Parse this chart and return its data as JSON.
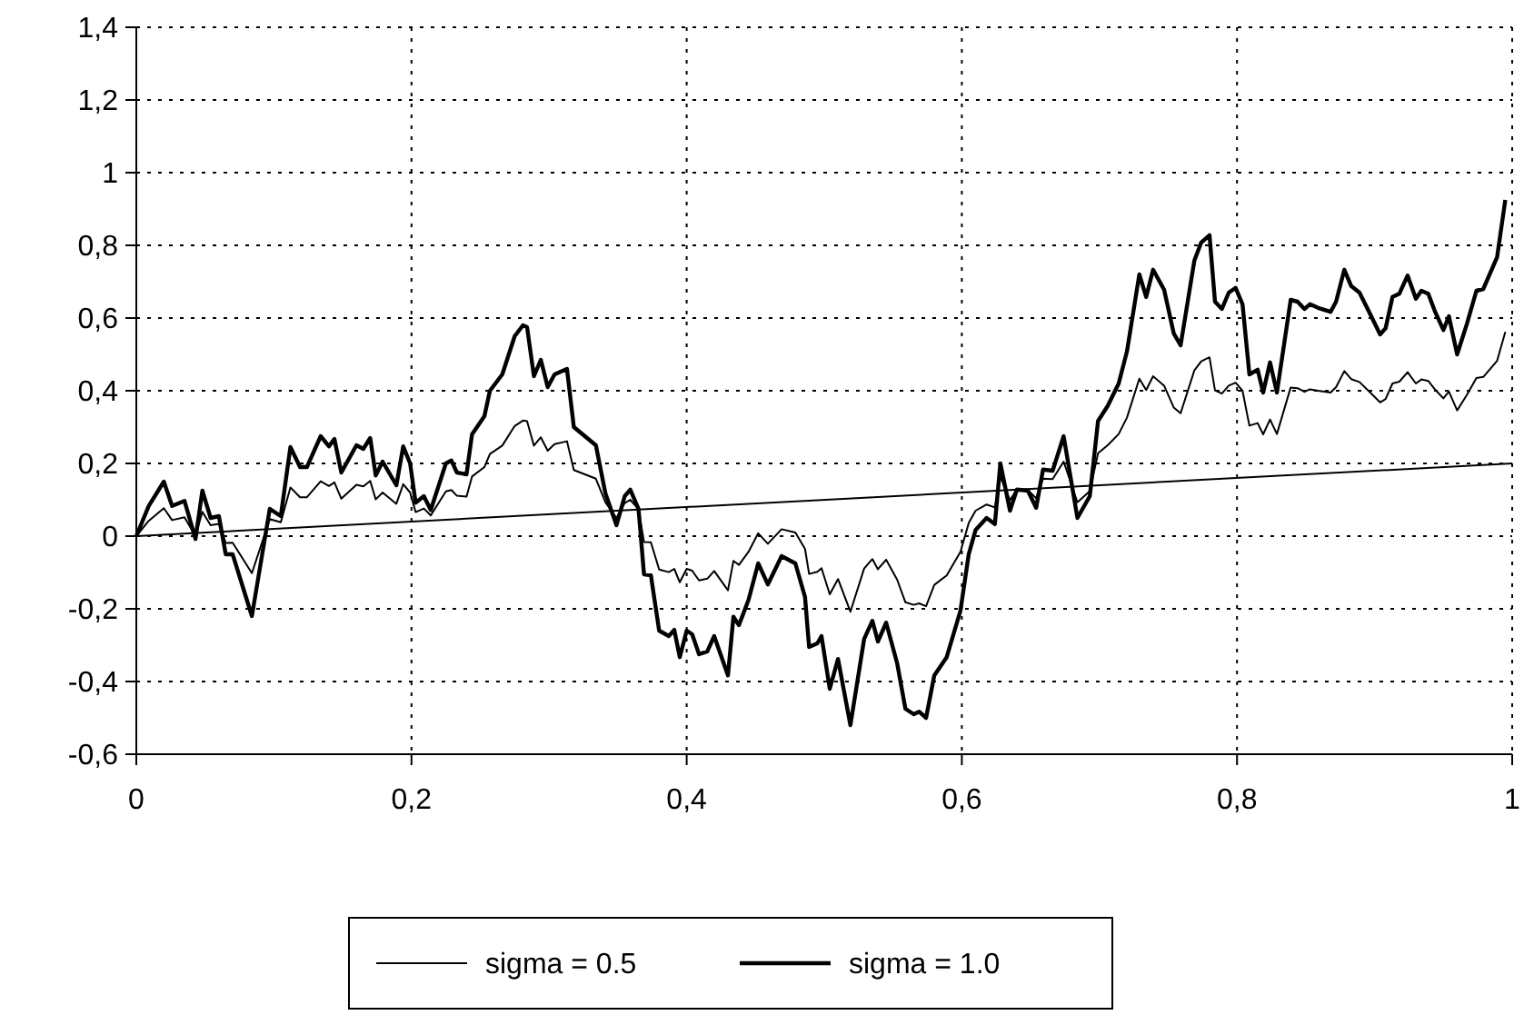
{
  "chart_data": {
    "type": "line",
    "x": [
      0,
      0.009,
      0.02,
      0.026,
      0.035,
      0.043,
      0.048,
      0.054,
      0.06,
      0.065,
      0.07,
      0.084,
      0.097,
      0.105,
      0.112,
      0.119,
      0.124,
      0.134,
      0.14,
      0.144,
      0.149,
      0.16,
      0.165,
      0.17,
      0.174,
      0.179,
      0.189,
      0.194,
      0.199,
      0.203,
      0.209,
      0.214,
      0.225,
      0.229,
      0.233,
      0.24,
      0.244,
      0.253,
      0.257,
      0.266,
      0.275,
      0.281,
      0.284,
      0.289,
      0.294,
      0.299,
      0.304,
      0.313,
      0.318,
      0.334,
      0.341,
      0.349,
      0.355,
      0.359,
      0.365,
      0.369,
      0.374,
      0.38,
      0.387,
      0.391,
      0.395,
      0.4,
      0.404,
      0.409,
      0.415,
      0.42,
      0.43,
      0.434,
      0.438,
      0.445,
      0.452,
      0.459,
      0.469,
      0.479,
      0.486,
      0.489,
      0.495,
      0.498,
      0.504,
      0.51,
      0.519,
      0.529,
      0.535,
      0.539,
      0.545,
      0.553,
      0.559,
      0.565,
      0.569,
      0.574,
      0.58,
      0.589,
      0.599,
      0.605,
      0.61,
      0.618,
      0.624,
      0.628,
      0.635,
      0.64,
      0.648,
      0.654,
      0.659,
      0.666,
      0.674,
      0.684,
      0.693,
      0.699,
      0.706,
      0.714,
      0.72,
      0.729,
      0.734,
      0.739,
      0.747,
      0.754,
      0.759,
      0.769,
      0.774,
      0.78,
      0.784,
      0.789,
      0.794,
      0.799,
      0.804,
      0.809,
      0.815,
      0.819,
      0.824,
      0.829,
      0.839,
      0.844,
      0.849,
      0.853,
      0.859,
      0.868,
      0.872,
      0.878,
      0.883,
      0.889,
      0.896,
      0.904,
      0.908,
      0.913,
      0.918,
      0.924,
      0.93,
      0.934,
      0.939,
      0.944,
      0.95,
      0.954,
      0.96,
      0.967,
      0.974,
      0.979,
      0.989,
      0.995
    ],
    "series": [
      {
        "name": "sigma = 0.5",
        "color": "#000000",
        "values": [
          0,
          0.042,
          0.077,
          0.044,
          0.052,
          0,
          0.067,
          0.03,
          0.034,
          -0.019,
          -0.018,
          -0.102,
          0.047,
          0.038,
          0.134,
          0.107,
          0.107,
          0.151,
          0.138,
          0.148,
          0.103,
          0.141,
          0.137,
          0.152,
          0.101,
          0.12,
          0.089,
          0.143,
          0.12,
          0.066,
          0.076,
          0.057,
          0.123,
          0.127,
          0.111,
          0.109,
          0.164,
          0.19,
          0.226,
          0.249,
          0.303,
          0.318,
          0.316,
          0.249,
          0.272,
          0.235,
          0.253,
          0.261,
          0.182,
          0.158,
          0.093,
          0.05,
          0.091,
          0.1,
          0.074,
          -0.016,
          -0.017,
          -0.092,
          -0.099,
          -0.09,
          -0.127,
          -0.09,
          -0.095,
          -0.122,
          -0.117,
          -0.096,
          -0.149,
          -0.068,
          -0.079,
          -0.043,
          0.008,
          -0.021,
          0.019,
          0.01,
          -0.035,
          -0.104,
          -0.098,
          -0.088,
          -0.16,
          -0.118,
          -0.208,
          -0.089,
          -0.063,
          -0.091,
          -0.065,
          -0.12,
          -0.182,
          -0.189,
          -0.185,
          -0.193,
          -0.134,
          -0.108,
          -0.043,
          0.036,
          0.07,
          0.087,
          0.079,
          0.163,
          0.099,
          0.128,
          0.127,
          0.104,
          0.158,
          0.157,
          0.205,
          0.093,
          0.124,
          0.228,
          0.25,
          0.281,
          0.326,
          0.433,
          0.402,
          0.44,
          0.414,
          0.354,
          0.338,
          0.456,
          0.481,
          0.492,
          0.401,
          0.392,
          0.414,
          0.422,
          0.4,
          0.304,
          0.311,
          0.28,
          0.321,
          0.281,
          0.409,
          0.407,
          0.397,
          0.404,
          0.4,
          0.395,
          0.41,
          0.454,
          0.432,
          0.424,
          0.398,
          0.368,
          0.377,
          0.42,
          0.425,
          0.451,
          0.42,
          0.431,
          0.427,
          0.403,
          0.379,
          0.398,
          0.346,
          0.388,
          0.435,
          0.438,
          0.482,
          0.562
        ]
      },
      {
        "name": "sigma = 1.0",
        "color": "#000000",
        "values": [
          0,
          0.083,
          0.15,
          0.083,
          0.097,
          -0.008,
          0.125,
          0.05,
          0.055,
          -0.05,
          -0.05,
          -0.22,
          0.075,
          0.055,
          0.245,
          0.19,
          0.19,
          0.275,
          0.247,
          0.267,
          0.175,
          0.25,
          0.24,
          0.27,
          0.167,
          0.205,
          0.14,
          0.247,
          0.2,
          0.092,
          0.11,
          0.072,
          0.2,
          0.208,
          0.175,
          0.17,
          0.28,
          0.33,
          0.4,
          0.445,
          0.55,
          0.58,
          0.575,
          0.44,
          0.485,
          0.41,
          0.445,
          0.46,
          0.3,
          0.25,
          0.117,
          0.03,
          0.11,
          0.128,
          0.075,
          -0.105,
          -0.108,
          -0.26,
          -0.275,
          -0.258,
          -0.333,
          -0.26,
          -0.27,
          -0.325,
          -0.317,
          -0.275,
          -0.383,
          -0.222,
          -0.245,
          -0.175,
          -0.075,
          -0.133,
          -0.055,
          -0.075,
          -0.167,
          -0.305,
          -0.295,
          -0.275,
          -0.42,
          -0.338,
          -0.52,
          -0.283,
          -0.233,
          -0.29,
          -0.238,
          -0.35,
          -0.475,
          -0.49,
          -0.483,
          -0.5,
          -0.383,
          -0.333,
          -0.205,
          -0.05,
          0.017,
          0.05,
          0.033,
          0.2,
          0.07,
          0.128,
          0.125,
          0.078,
          0.183,
          0.18,
          0.275,
          0.05,
          0.11,
          0.317,
          0.358,
          0.42,
          0.508,
          0.72,
          0.658,
          0.733,
          0.678,
          0.558,
          0.525,
          0.758,
          0.808,
          0.828,
          0.645,
          0.625,
          0.67,
          0.683,
          0.638,
          0.445,
          0.458,
          0.395,
          0.478,
          0.395,
          0.65,
          0.645,
          0.625,
          0.638,
          0.628,
          0.617,
          0.645,
          0.733,
          0.688,
          0.67,
          0.617,
          0.555,
          0.572,
          0.658,
          0.667,
          0.717,
          0.653,
          0.675,
          0.667,
          0.617,
          0.567,
          0.605,
          0.5,
          0.583,
          0.675,
          0.68,
          0.767,
          0.925
        ]
      },
      {
        "color": "#000000",
        "x": [
          0,
          1
        ],
        "values": [
          0,
          0.2
        ]
      }
    ],
    "xlim": [
      0,
      1
    ],
    "xticks": [
      0,
      {
        "value": 0.2,
        "label": "0,2"
      },
      {
        "value": 0.4,
        "label": "0,4"
      },
      {
        "value": 0.6,
        "label": "0,6"
      },
      {
        "value": 0.8,
        "label": "0,8"
      },
      1
    ],
    "ylim": [
      -0.6,
      1.4
    ],
    "yticks": [
      {
        "value": -0.6,
        "label": "-0,6"
      },
      {
        "value": -0.4,
        "label": "-0,4"
      },
      {
        "value": -0.2,
        "label": "-0,2"
      },
      0,
      {
        "value": 0.2,
        "label": "0,2"
      },
      {
        "value": 0.4,
        "label": "0,4"
      },
      {
        "value": 0.6,
        "label": "0,6"
      },
      {
        "value": 0.8,
        "label": "0,8"
      },
      1,
      {
        "value": 1.2,
        "label": "1,2"
      },
      {
        "value": 1.4,
        "label": "1,4"
      }
    ],
    "grid": true,
    "legend": "bottom",
    "marker": "none",
    "line_style": "solid"
  }
}
